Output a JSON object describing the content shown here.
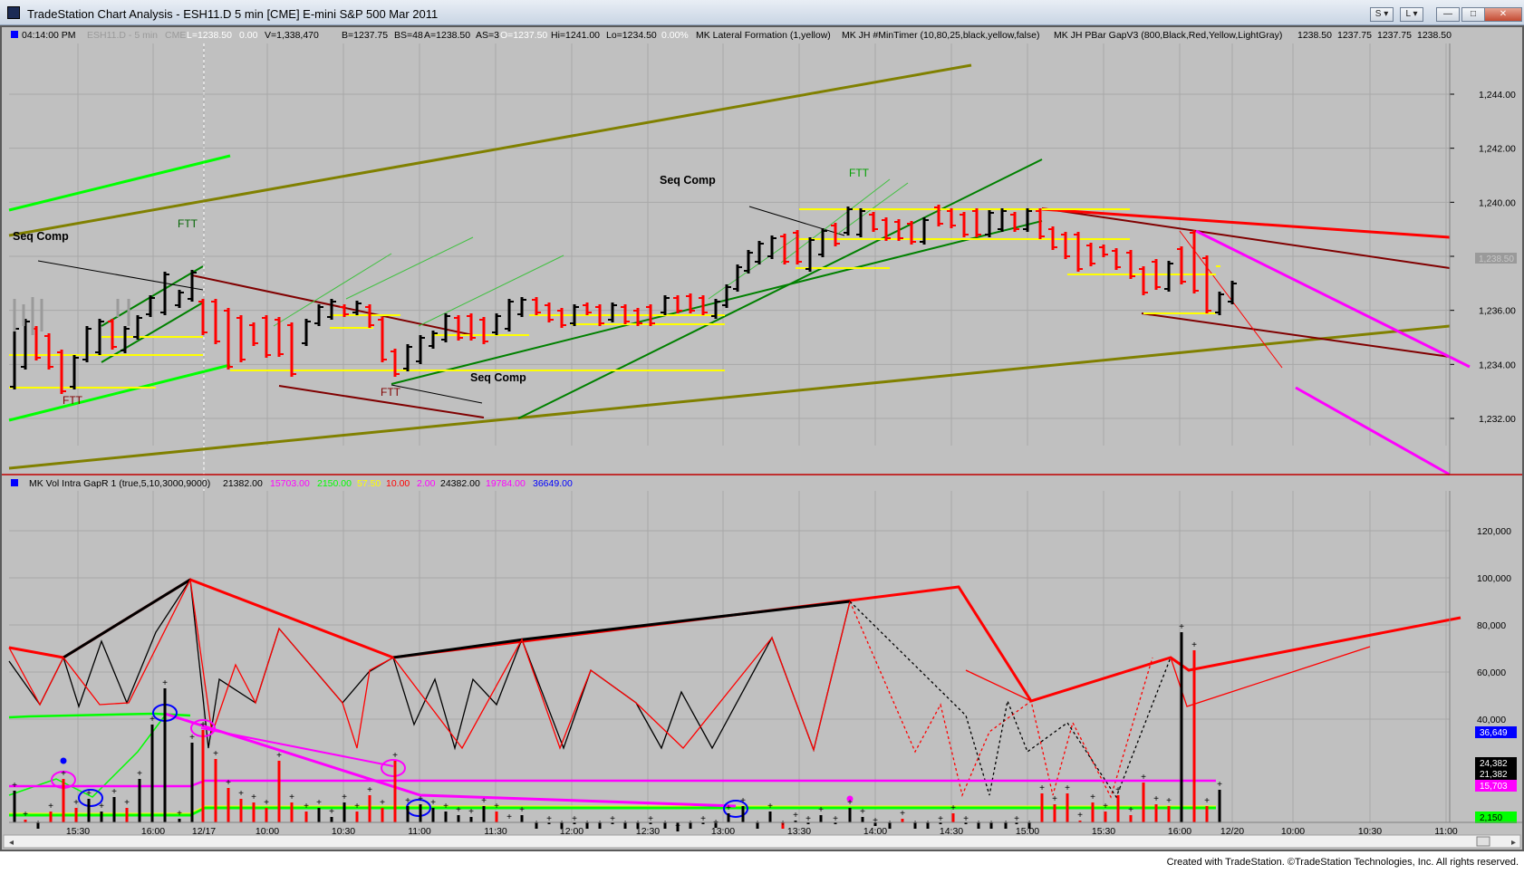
{
  "window": {
    "title": "TradeStation Chart Analysis - ESH11.D 5 min [CME] E-mini S&P 500 Mar 2011",
    "btn_s": "S",
    "btn_l": "L"
  },
  "price_header": {
    "time": "04:14:00 PM",
    "symbol": "ESH11.D - 5 min",
    "exchange": "CME",
    "last": "L=1238.50",
    "chg": "0.00",
    "vol": "V=1,338,470",
    "bid": "B=1237.75",
    "bs": "BS=48",
    "ask": "A=1238.50",
    "as": "AS=3",
    "open": "O=1237.50",
    "hi": "Hi=1241.00",
    "lo": "Lo=1234.50",
    "pct": "0.00%",
    "ind1": "MK Lateral Formation (1,yellow)",
    "ind2": "MK JH #MinTimer (10,80,25,black,yellow,false)",
    "ind3": "MK JH PBar GapV3 (800,Black,Red,Yellow,LightGray)",
    "v1": "1238.50",
    "v2": "1237.75",
    "v3": "1237.75",
    "v4": "1238.50"
  },
  "volume_header": {
    "name": "MK Vol Intra GapR 1 (true,5,10,3000,9000)",
    "v1": "21382.00",
    "v2": "15703.00",
    "v3": "2150.00",
    "v4": "57.50",
    "v5": "10.00",
    "v6": "2.00",
    "v7": "24382.00",
    "v8": "19784.00",
    "v9": "36649.00"
  },
  "colors": {
    "bg": "#c0c0c0",
    "grid": "#a8a8a8",
    "up": "#000000",
    "down": "#ff0000",
    "lateral": "#ffff00",
    "olive": "#808000",
    "green": "#00a000",
    "brightgreen": "#00ff00",
    "maroon": "#800000",
    "magenta": "#ff00ff",
    "blue": "#0000ff"
  },
  "price_axis": {
    "ticks": [
      "1,244.00",
      "1,242.00",
      "1,240.00",
      "1,238.00",
      "1,236.00",
      "1,234.00",
      "1,232.00"
    ],
    "last_label": "1,238.50"
  },
  "volume_axis": {
    "ticks": [
      "120,000",
      "100,000",
      "80,000",
      "60,000",
      "40,000"
    ],
    "label_blue": "36,649",
    "label_black1": "24,382",
    "label_black2": "21,382",
    "label_magenta": "15,703",
    "label_green": "2,150"
  },
  "time_axis": [
    "15:30",
    "16:00",
    "12/17",
    "10:00",
    "10:30",
    "11:00",
    "11:30",
    "12:00",
    "12:30",
    "13:00",
    "13:30",
    "14:00",
    "14:30",
    "15:00",
    "15:30",
    "16:00",
    "12/20",
    "10:00",
    "10:30",
    "11:00"
  ],
  "annotations": {
    "seq_comp_1": "Seq Comp",
    "seq_comp_2": "Seq Comp",
    "seq_comp_3": "Seq Comp",
    "ftt_1": "FTT",
    "ftt_2": "FTT",
    "ftt_3": "FTT",
    "ftt_4": "FTT"
  },
  "credit": "Created with TradeStation. ©TradeStation Technologies, Inc. All rights reserved."
}
